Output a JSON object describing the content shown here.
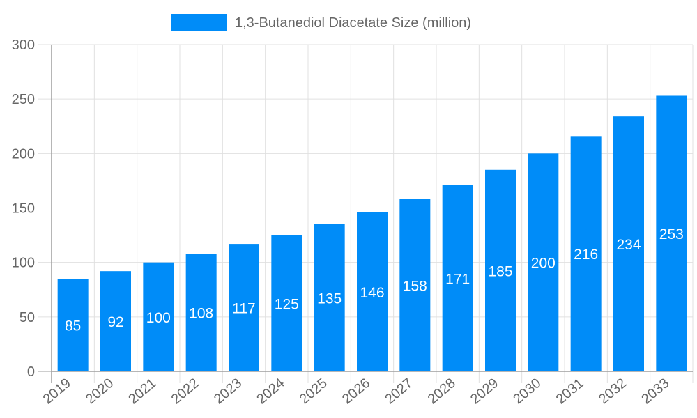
{
  "chart_data": {
    "type": "bar",
    "title": "",
    "xlabel": "",
    "ylabel": "",
    "categories": [
      "2019",
      "2020",
      "2021",
      "2022",
      "2023",
      "2024",
      "2025",
      "2026",
      "2027",
      "2028",
      "2029",
      "2030",
      "2031",
      "2032",
      "2033"
    ],
    "series": [
      {
        "name": "1,3-Butanediol Diacetate Size (million)",
        "values": [
          85,
          92,
          100,
          108,
          117,
          125,
          135,
          146,
          158,
          171,
          185,
          200,
          216,
          234,
          253
        ]
      }
    ],
    "ylim": [
      0,
      300
    ],
    "yticks": [
      0,
      50,
      100,
      150,
      200,
      250,
      300
    ],
    "grid": true,
    "legend_position": "top",
    "data_labels": true,
    "colors": {
      "bar": "#008cf8",
      "grid": "#e0e0e0",
      "axis": "#9e9e9e",
      "text": "#666666",
      "label": "#ffffff"
    }
  }
}
